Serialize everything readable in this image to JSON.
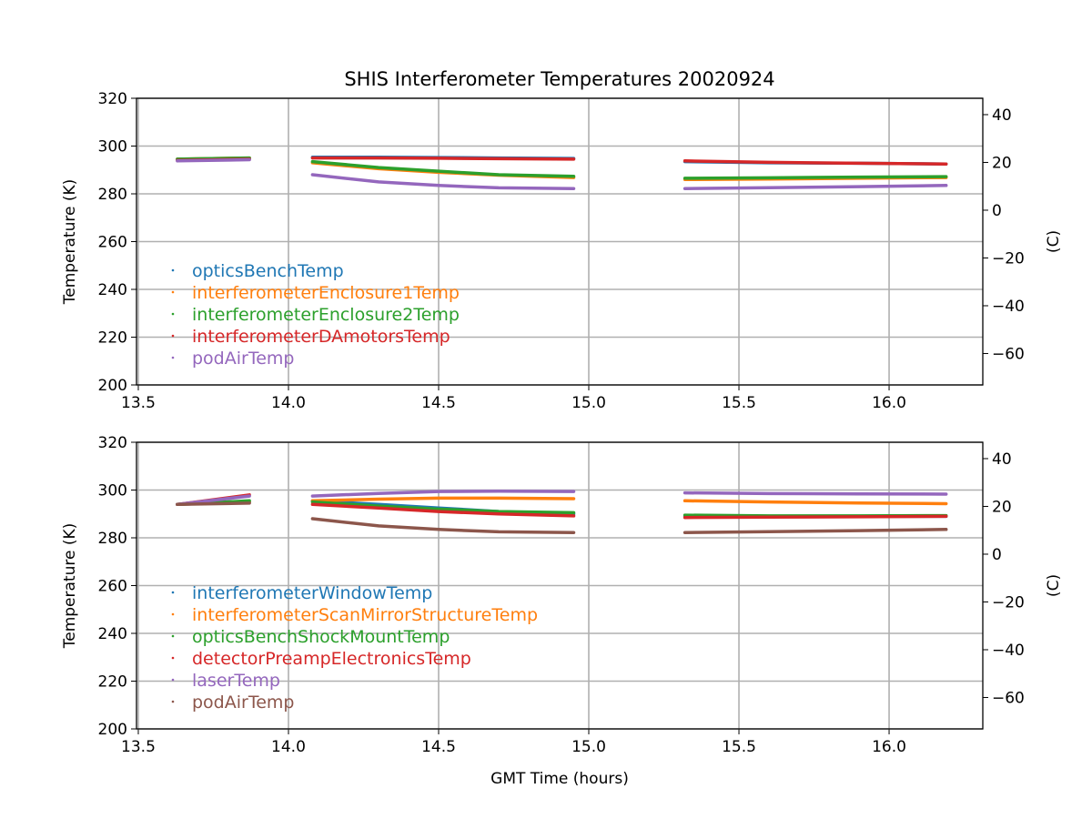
{
  "title": "SHIS Interferometer Temperatures 20020924",
  "chart_data": [
    {
      "type": "line",
      "ylabel": "Temperature (K)",
      "y2label": "(C)",
      "xlabel": "",
      "xlim": [
        13.494,
        16.312
      ],
      "ylim": [
        200,
        320
      ],
      "xticks": [
        "13.5",
        "14.0",
        "14.5",
        "15.0",
        "15.5",
        "16.0"
      ],
      "yticks": [
        "200",
        "220",
        "240",
        "260",
        "280",
        "300",
        "320"
      ],
      "y2ticks": [
        "−60",
        "−40",
        "−20",
        "0",
        "20",
        "40"
      ],
      "grid": true,
      "legend": "center-left",
      "x": [
        13.63,
        13.87,
        null,
        14.08,
        14.3,
        14.5,
        14.7,
        14.95,
        null,
        15.32,
        15.6,
        15.9,
        16.19
      ],
      "series": [
        {
          "name": "opticsBenchTemp",
          "color": "#1f77b4",
          "values": [
            294.5,
            294.8,
            null,
            295.3,
            295.3,
            295.2,
            295,
            294.8,
            null,
            293.5,
            293,
            292.8,
            292.5
          ]
        },
        {
          "name": "interferometerEnclosure1Temp",
          "color": "#ff7f0e",
          "values": [
            294.5,
            295,
            null,
            293,
            290.5,
            289,
            287.8,
            286.8,
            null,
            286,
            286.2,
            286.5,
            286.8
          ]
        },
        {
          "name": "interferometerEnclosure2Temp",
          "color": "#2ca02c",
          "values": [
            294.5,
            295,
            null,
            293.5,
            291,
            289.5,
            288,
            287.3,
            null,
            286.5,
            286.7,
            287,
            287.2
          ]
        },
        {
          "name": "interferometerDAmotorsTemp",
          "color": "#d62728",
          "values": [
            294,
            294.5,
            null,
            295,
            295,
            294.9,
            294.7,
            294.5,
            null,
            293.8,
            293.2,
            292.8,
            292.5
          ]
        },
        {
          "name": "podAirTemp",
          "color": "#9467bd",
          "values": [
            293.8,
            294.3,
            null,
            288,
            285,
            283.5,
            282.5,
            282.2,
            null,
            282.2,
            282.6,
            283,
            283.5
          ]
        }
      ]
    },
    {
      "type": "line",
      "ylabel": "Temperature (K)",
      "y2label": "(C)",
      "xlabel": "GMT Time (hours)",
      "xlim": [
        13.494,
        16.312
      ],
      "ylim": [
        200,
        320
      ],
      "xticks": [
        "13.5",
        "14.0",
        "14.5",
        "15.0",
        "15.5",
        "16.0"
      ],
      "yticks": [
        "200",
        "220",
        "240",
        "260",
        "280",
        "300",
        "320"
      ],
      "y2ticks": [
        "−60",
        "−40",
        "−20",
        "0",
        "20",
        "40"
      ],
      "grid": true,
      "legend": "center-left",
      "x": [
        13.63,
        13.87,
        null,
        14.08,
        14.3,
        14.5,
        14.7,
        14.95,
        null,
        15.32,
        15.6,
        15.9,
        16.19
      ],
      "series": [
        {
          "name": "interferometerWindowTemp",
          "color": "#1f77b4",
          "values": [
            294,
            295,
            null,
            295.5,
            294,
            292.5,
            291,
            290,
            null,
            289,
            289,
            289,
            289
          ]
        },
        {
          "name": "interferometerScanMirrorStructureTemp",
          "color": "#ff7f0e",
          "values": [
            294,
            295,
            null,
            295.5,
            296.2,
            296.6,
            296.6,
            296.4,
            null,
            295.5,
            295,
            294.6,
            294.3
          ]
        },
        {
          "name": "opticsBenchShockMountTemp",
          "color": "#2ca02c",
          "values": [
            294,
            295.5,
            null,
            295,
            293.3,
            292,
            291,
            290.5,
            null,
            289.5,
            289.2,
            289.2,
            289.3
          ]
        },
        {
          "name": "detectorPreampElectronicsTemp",
          "color": "#d62728",
          "values": [
            294,
            298,
            null,
            294,
            292.5,
            291,
            290,
            289.2,
            null,
            288.5,
            288.7,
            288.8,
            289
          ]
        },
        {
          "name": "laserTemp",
          "color": "#9467bd",
          "values": [
            294,
            297.5,
            null,
            297.5,
            298.6,
            299.4,
            299.5,
            299.4,
            null,
            298.8,
            298.5,
            298.4,
            298.3
          ]
        },
        {
          "name": "podAirTemp",
          "color": "#8c564b",
          "values": [
            294,
            294.5,
            null,
            288,
            285,
            283.5,
            282.5,
            282.2,
            null,
            282.2,
            282.6,
            283,
            283.5
          ]
        }
      ]
    }
  ]
}
